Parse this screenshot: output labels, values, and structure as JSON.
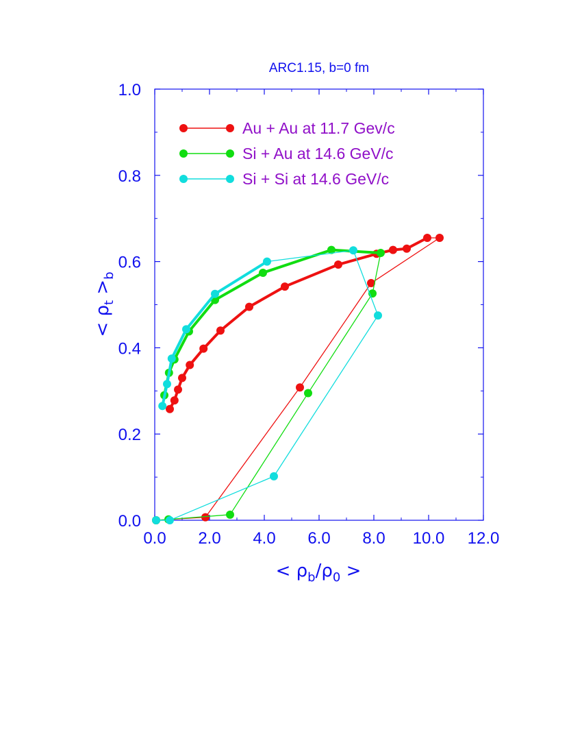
{
  "chart_data": {
    "type": "line",
    "title": "ARC1.15, b=0 fm",
    "xlabel": {
      "open": "< ",
      "main": "ρ",
      "sub1": "b",
      "slash": "/ρ",
      "sub2": "0",
      "close": " >"
    },
    "ylabel": {
      "open": "< ",
      "main": "ρ",
      "sub1": "t",
      "close": " >",
      "sub2": "b"
    },
    "xlim": [
      0,
      12
    ],
    "ylim": [
      0,
      1
    ],
    "x_ticks": [
      "0.0",
      "2.0",
      "4.0",
      "6.0",
      "8.0",
      "10.0",
      "12.0"
    ],
    "y_ticks": [
      "0.0",
      "0.2",
      "0.4",
      "0.6",
      "0.8",
      "1.0"
    ],
    "legend_position": "top-left",
    "series": [
      {
        "name": "Au + Au at 11.7 Gev/c",
        "color": "#ee1111",
        "bold_segments": [
          0,
          13
        ],
        "x": [
          0.55,
          0.72,
          0.85,
          1.0,
          1.28,
          1.78,
          2.4,
          3.45,
          4.75,
          6.7,
          8.1,
          8.7,
          9.2,
          9.95,
          10.4,
          7.9,
          5.3,
          1.85,
          0.05
        ],
        "y": [
          0.258,
          0.278,
          0.303,
          0.33,
          0.36,
          0.398,
          0.44,
          0.495,
          0.542,
          0.593,
          0.618,
          0.627,
          0.63,
          0.655,
          0.655,
          0.55,
          0.308,
          0.007,
          0.0
        ]
      },
      {
        "name": "Si + Au at 14.6 GeV/c",
        "color": "#11dd11",
        "bold_segments": [
          0,
          7
        ],
        "x": [
          0.35,
          0.52,
          0.72,
          1.25,
          2.2,
          3.95,
          6.45,
          8.25,
          7.95,
          5.6,
          2.75,
          0.5,
          0.05
        ],
        "y": [
          0.29,
          0.342,
          0.373,
          0.438,
          0.511,
          0.574,
          0.627,
          0.62,
          0.526,
          0.295,
          0.013,
          0.002,
          0.0
        ]
      },
      {
        "name": "Si + Si at 14.6 GeV/c",
        "color": "#11dddd",
        "bold_segments": [
          0,
          5
        ],
        "x": [
          0.28,
          0.45,
          0.62,
          1.15,
          2.2,
          4.1,
          7.25,
          8.15,
          4.35,
          0.55,
          0.05
        ],
        "y": [
          0.265,
          0.316,
          0.375,
          0.443,
          0.525,
          0.6,
          0.626,
          0.475,
          0.102,
          0.0,
          0.0
        ]
      }
    ]
  }
}
